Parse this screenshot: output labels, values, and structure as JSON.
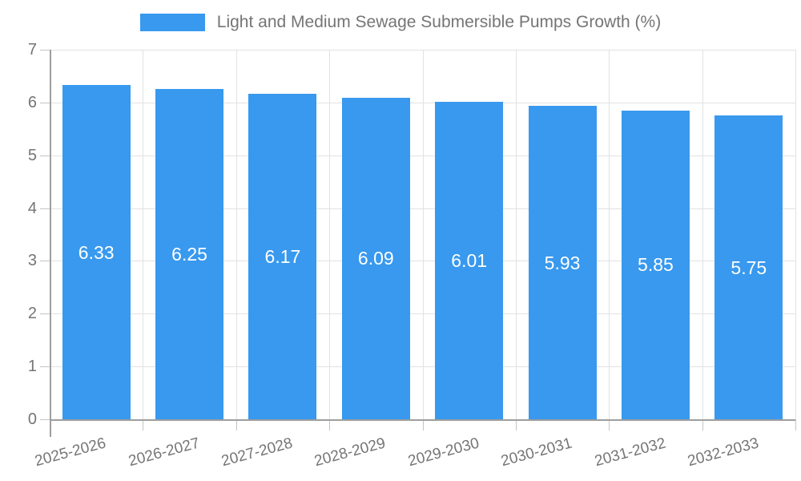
{
  "chart_data": {
    "type": "bar",
    "title": "Light and Medium Sewage Submersible Pumps Growth (%)",
    "legend": [
      {
        "label": "Light and Medium Sewage Submersible Pumps Growth (%)",
        "color": "#3899EE"
      }
    ],
    "legend_position": "top",
    "categories": [
      "2025-2026",
      "2026-2027",
      "2027-2028",
      "2028-2029",
      "2029-2030",
      "2030-2031",
      "2031-2032",
      "2032-2033"
    ],
    "values": [
      6.33,
      6.25,
      6.17,
      6.09,
      6.01,
      5.93,
      5.85,
      5.75
    ],
    "value_labels": [
      "6.33",
      "6.25",
      "6.17",
      "6.09",
      "6.01",
      "5.93",
      "5.85",
      "5.75"
    ],
    "xlabel": "",
    "ylabel": "",
    "ylim": [
      0,
      7
    ],
    "yticks": [
      0,
      1,
      2,
      3,
      4,
      5,
      6,
      7
    ],
    "grid": true,
    "colors": {
      "bar": "#3899EE",
      "bar_label": "#ffffff",
      "axis_text": "#757575",
      "title_text": "#757575",
      "grid_line": "#e2e2e2",
      "axis_line": "#9e9e9e",
      "tick_mark": "#c4c4c4",
      "background": "#ffffff"
    }
  }
}
